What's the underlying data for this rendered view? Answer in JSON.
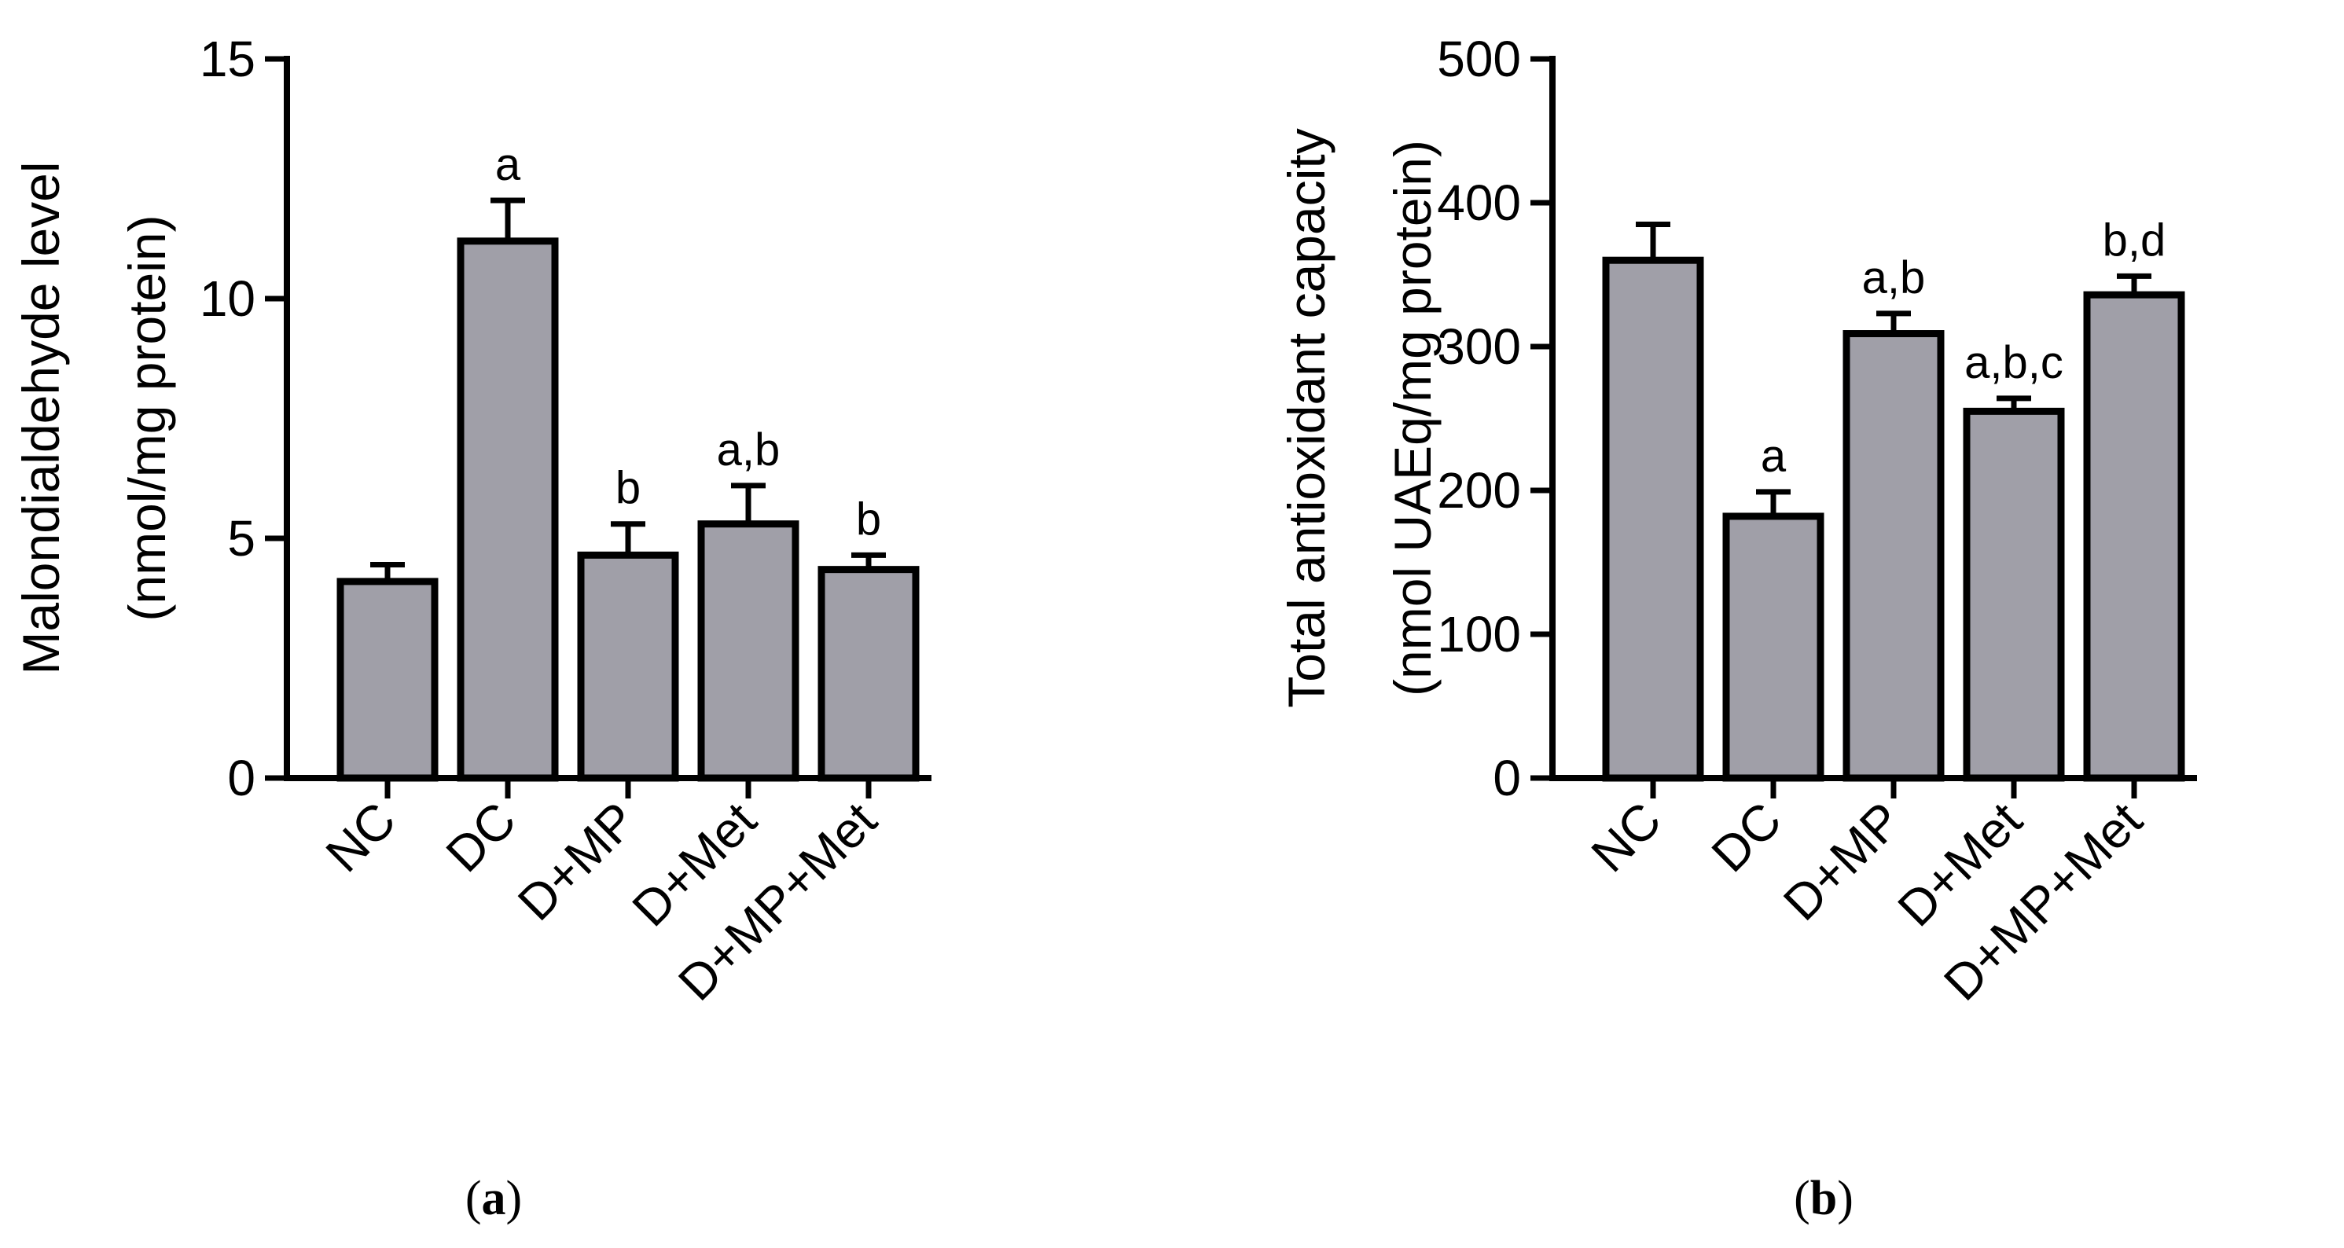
{
  "chart_data": [
    {
      "type": "bar",
      "panel_label": "(a)",
      "ylabel_lines": [
        "Malondialdehyde level",
        "(nmol/mg protein)"
      ],
      "categories": [
        "NC",
        "DC",
        "D+MP",
        "D+Met",
        "D+MP+Met"
      ],
      "values": [
        4.1,
        11.2,
        4.65,
        5.3,
        4.35
      ],
      "errors": [
        0.35,
        0.85,
        0.65,
        0.8,
        0.3
      ],
      "significance": [
        "",
        "a",
        "b",
        "a,b",
        "b"
      ],
      "ylim": [
        0,
        15
      ],
      "yticks": [
        0,
        5,
        10,
        15
      ],
      "colors": {
        "bar": "#a09fa8",
        "stroke": "#000000"
      }
    },
    {
      "type": "bar",
      "panel_label": "(b)",
      "ylabel_lines": [
        "Total antioxidant capacity",
        "(nmol UAEq/mg protein)"
      ],
      "categories": [
        "NC",
        "DC",
        "D+MP",
        "D+Met",
        "D+MP+Met"
      ],
      "values": [
        360,
        182,
        309,
        255,
        336
      ],
      "errors": [
        25,
        17,
        14,
        9,
        13
      ],
      "significance": [
        "",
        "a",
        "a,b",
        "a,b,c",
        "b,d"
      ],
      "ylim": [
        0,
        500
      ],
      "yticks": [
        0,
        100,
        200,
        300,
        400,
        500
      ],
      "colors": {
        "bar": "#a09fa8",
        "stroke": "#000000"
      }
    }
  ]
}
